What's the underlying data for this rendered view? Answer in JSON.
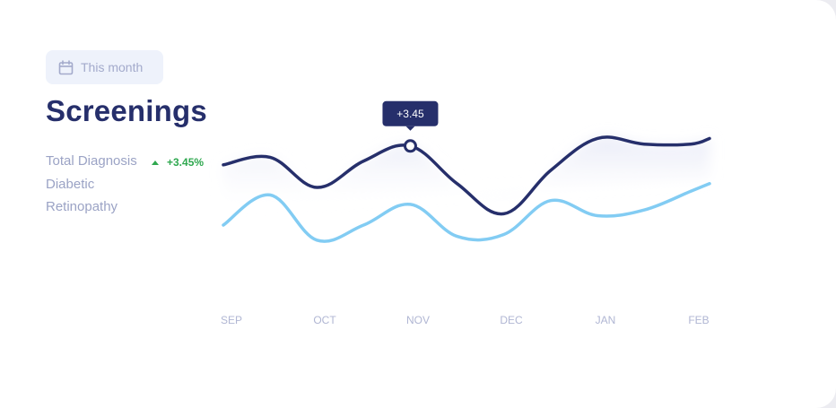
{
  "header": {
    "date_filter": "This month",
    "calendar_icon": "calendar-icon",
    "title": "Screenings"
  },
  "legend": {
    "line1": "Total Diagnosis",
    "delta": "+3.45%",
    "line2": "Diabetic",
    "line3": "Retinopathy"
  },
  "colors": {
    "primary": "#262f6b",
    "secondary": "#82ccf3",
    "positive": "#2fa84f",
    "muted": "#a3aacb"
  },
  "chart_data": {
    "type": "line",
    "categories": [
      "SEP",
      "OCT",
      "NOV",
      "DEC",
      "JAN",
      "FEB"
    ],
    "x": [
      0,
      0.5,
      1,
      1.5,
      2,
      2.5,
      3,
      3.5,
      4,
      4.5,
      5,
      5.2
    ],
    "y_axis_visible": false,
    "grid": false,
    "ylim": [
      0,
      10
    ],
    "series": [
      {
        "values": [
          7.2,
          7.6,
          6.0,
          7.4,
          8.2,
          6.2,
          4.6,
          6.9,
          8.6,
          8.3,
          8.3,
          8.6
        ],
        "color": "#262f6b"
      },
      {
        "values": [
          4.0,
          5.6,
          3.2,
          4.0,
          5.1,
          3.4,
          3.5,
          5.3,
          4.5,
          4.8,
          5.8,
          6.2
        ],
        "color": "#82ccf3"
      }
    ],
    "annotation": {
      "label": "+3.45",
      "category": "NOV",
      "series_index": 0
    }
  }
}
